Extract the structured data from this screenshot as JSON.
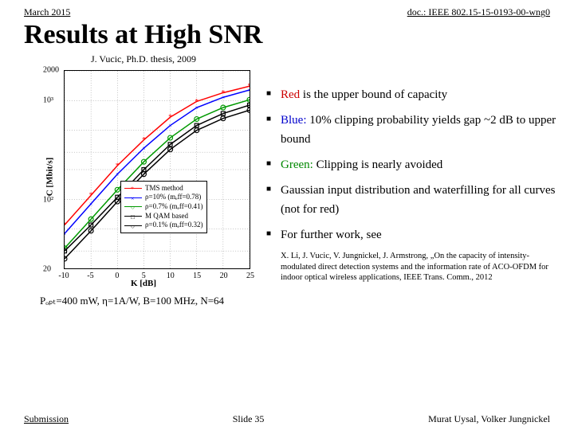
{
  "header": {
    "left": "March 2015",
    "right": "doc.: IEEE 802.15-15-0193-00-wng0"
  },
  "title": "Results at High SNR",
  "caption": "J. Vucic, Ph.D. thesis, 2009",
  "params": "Pₒₚₜ=400 mW, η=1A/W, B=100 MHz, N=64",
  "bullets": {
    "b1_pre": "Red",
    "b1_post": " is the upper bound of capacity",
    "b2_pre": "Blue:",
    "b2_post": " 10% clipping probability yields gap ~2 dB to upper bound",
    "b3_pre": "Green:",
    "b3_post": " Clipping is nearly avoided",
    "b4": "Gaussian input distribution and waterfilling for all curves (not for red)",
    "b5": "For further work, see"
  },
  "citation": "X. Li, J. Vucic, V. Jungnickel, J. Armstrong, „On the capacity of intensity-modulated direct detection systems and the information rate of ACO-OFDM for indoor optical wireless applications, IEEE Trans. Comm., 2012",
  "footer": {
    "left": "Submission",
    "center": "Slide 35",
    "right": "Murat Uysal, Volker Jungnickel"
  },
  "chart": {
    "type": "line-log",
    "xlabel": "K [dB]",
    "ylabel": "C [Mbit/s]",
    "xlim": [
      -10,
      25
    ],
    "ylim": [
      20,
      2000
    ],
    "xticks": [
      -10,
      -5,
      0,
      5,
      10,
      15,
      20,
      25
    ],
    "yticks": [
      20,
      100,
      1000,
      2000
    ],
    "ytick_labels": [
      "20",
      "10²",
      "10³",
      "2000"
    ],
    "grid_color": "#888888",
    "colors": {
      "red": "#ff0000",
      "blue": "#0000ff",
      "green": "#009900",
      "black": "#000000"
    },
    "series": [
      {
        "name": "TMS",
        "color": "#ff0000",
        "marker": "*",
        "x": [
          -10,
          -5,
          0,
          5,
          10,
          15,
          20,
          25
        ],
        "y": [
          55,
          110,
          220,
          400,
          680,
          980,
          1200,
          1400
        ]
      },
      {
        "name": "rho10",
        "color": "#0000ff",
        "marker": "x",
        "x": [
          -10,
          -5,
          0,
          5,
          10,
          15,
          20,
          25
        ],
        "y": [
          45,
          90,
          180,
          330,
          560,
          850,
          1080,
          1280
        ]
      },
      {
        "name": "rho07",
        "color": "#009900",
        "marker": "o",
        "x": [
          -10,
          -5,
          0,
          5,
          10,
          15,
          20,
          25
        ],
        "y": [
          32,
          63,
          125,
          240,
          420,
          650,
          850,
          1020
        ]
      },
      {
        "name": "mqam",
        "color": "#000000",
        "marker": "s",
        "x": [
          -10,
          -5,
          0,
          5,
          10,
          15,
          20,
          25
        ],
        "y": [
          30,
          55,
          105,
          200,
          360,
          560,
          740,
          900
        ]
      },
      {
        "name": "rho01",
        "color": "#000000",
        "marker": "o",
        "x": [
          -10,
          -5,
          0,
          5,
          10,
          15,
          20,
          25
        ],
        "y": [
          25,
          48,
          95,
          180,
          320,
          500,
          660,
          800
        ]
      }
    ],
    "legend": [
      {
        "label": "TMS method",
        "color": "#ff0000",
        "marker": "*"
      },
      {
        "label": "ρ=10% (mₑff=0.78)",
        "color": "#0000ff",
        "marker": "x"
      },
      {
        "label": "ρ=0.7% (mₑff=0.41)",
        "color": "#009900",
        "marker": "o"
      },
      {
        "label": "M QAM based",
        "color": "#000000",
        "marker": "s"
      },
      {
        "label": "ρ=0.1% (mₑff=0.32)",
        "color": "#000000",
        "marker": "o"
      }
    ]
  }
}
